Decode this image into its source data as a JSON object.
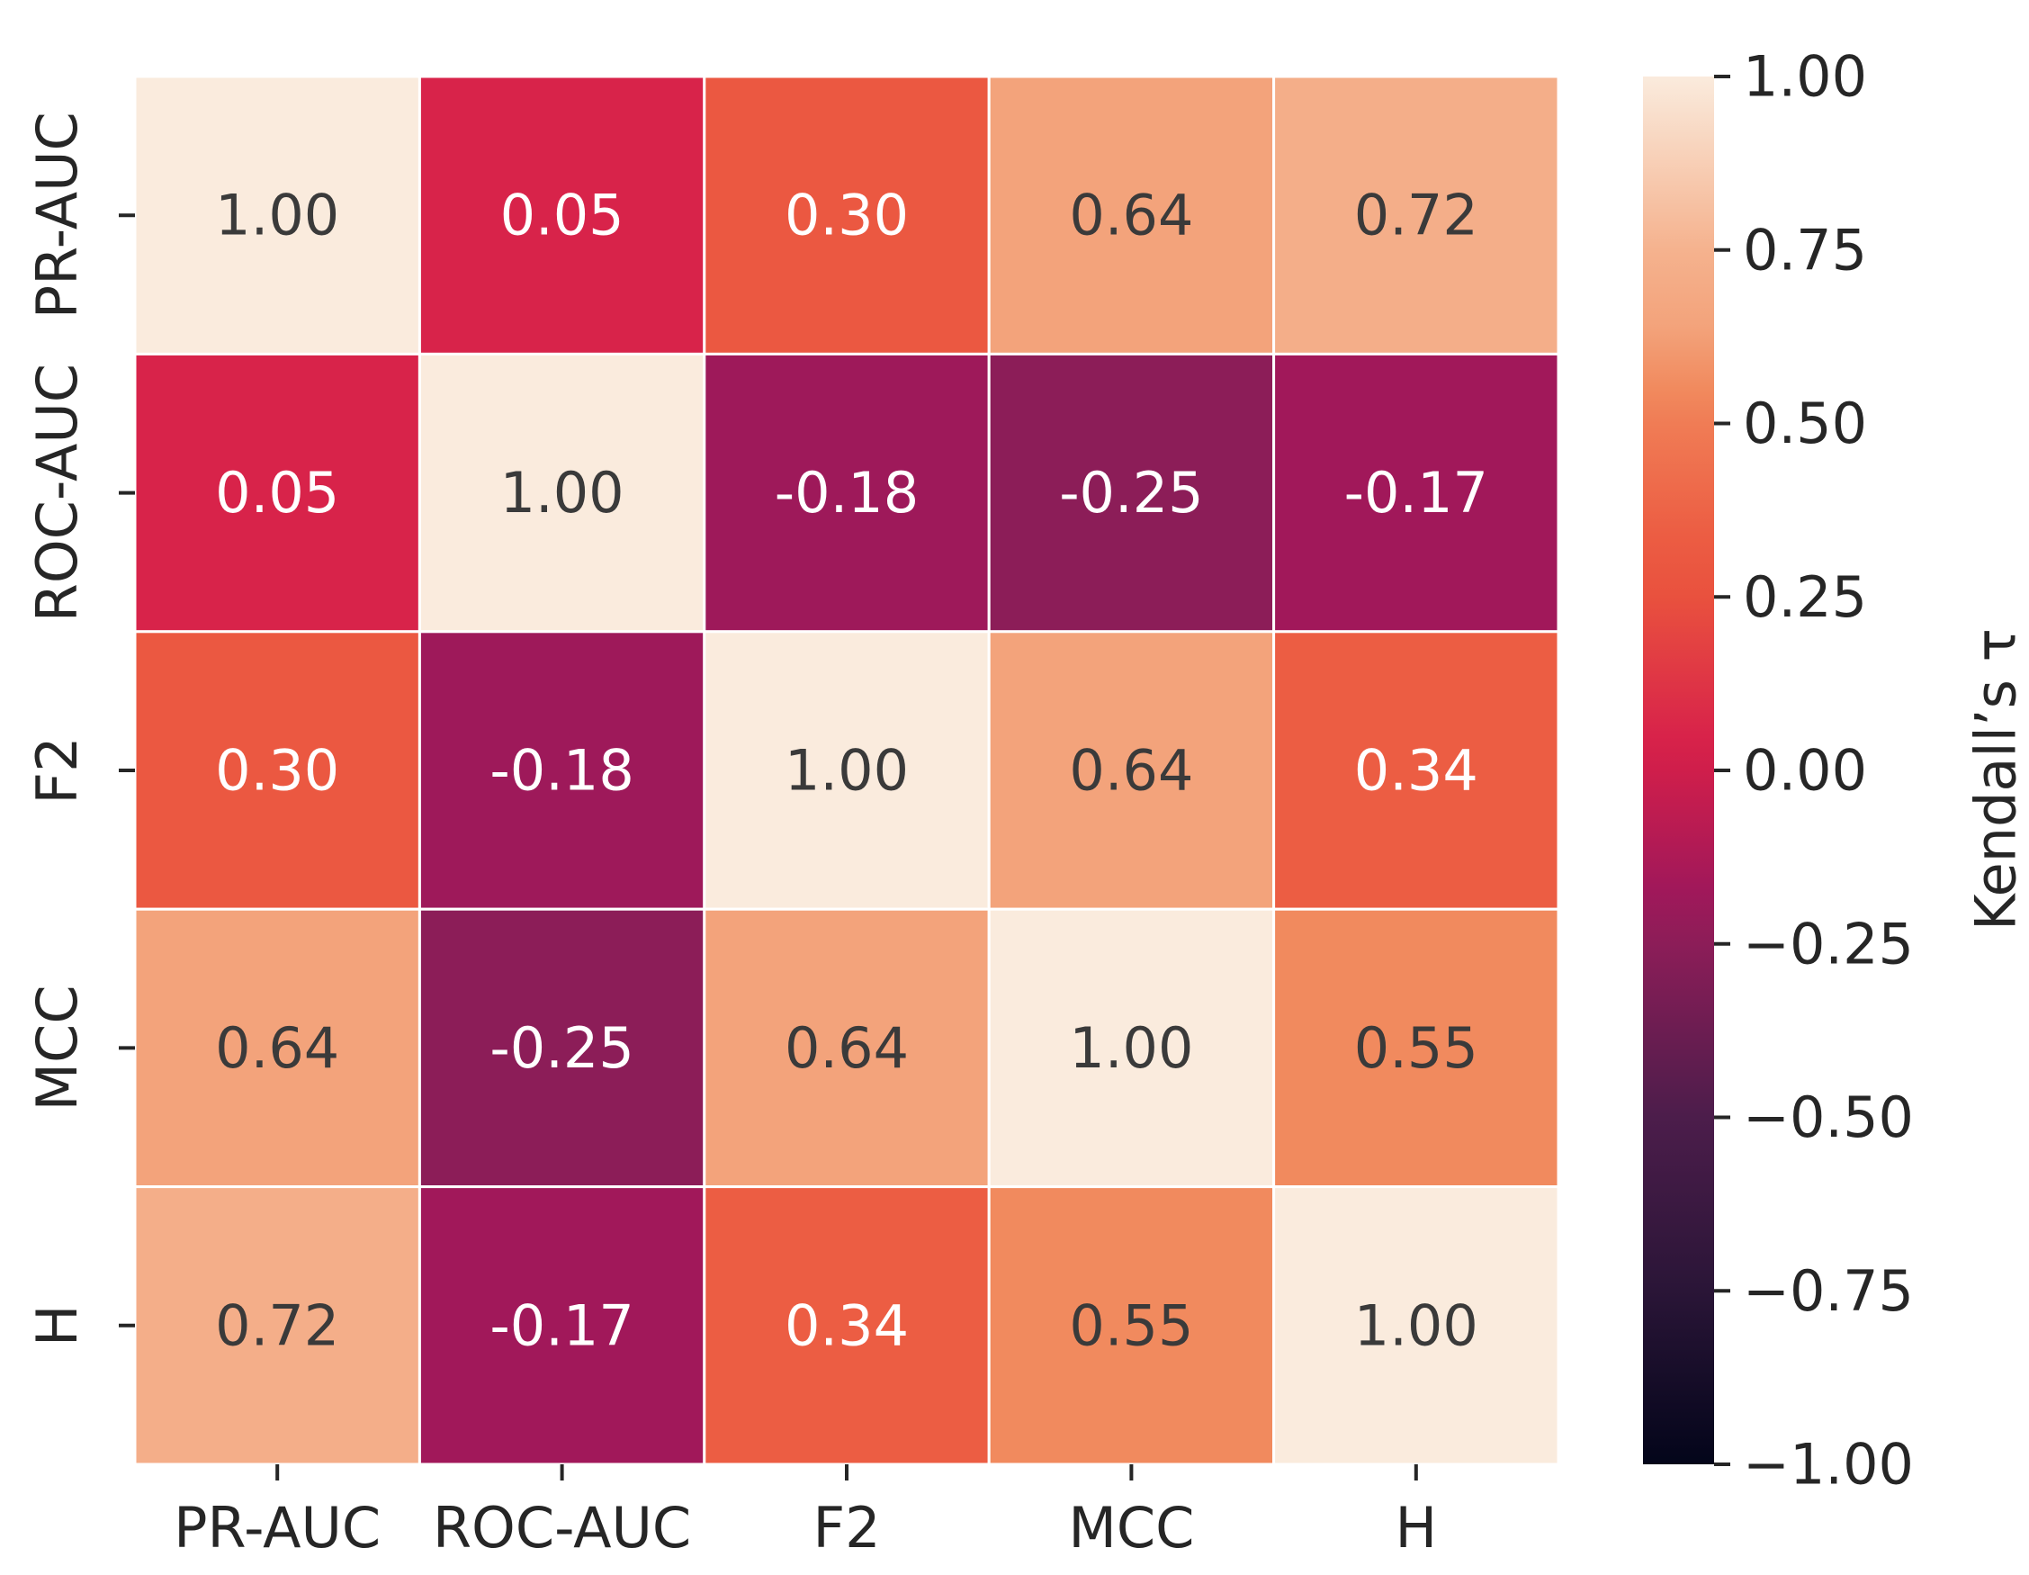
{
  "chart_data": {
    "type": "heatmap",
    "title": "",
    "xlabel": "",
    "ylabel": "",
    "x_categories": [
      "PR-AUC",
      "ROC-AUC",
      "F2",
      "MCC",
      "H"
    ],
    "y_categories": [
      "PR-AUC",
      "ROC-AUC",
      "F2",
      "MCC",
      "H"
    ],
    "matrix": [
      [
        1.0,
        0.05,
        0.3,
        0.64,
        0.72
      ],
      [
        0.05,
        1.0,
        -0.18,
        -0.25,
        -0.17
      ],
      [
        0.3,
        -0.18,
        1.0,
        0.64,
        0.34
      ],
      [
        0.64,
        -0.25,
        0.64,
        1.0,
        0.55
      ],
      [
        0.72,
        -0.17,
        0.34,
        0.55,
        1.0
      ]
    ],
    "value_labels": [
      [
        "1.00",
        "0.05",
        "0.30",
        "0.64",
        "0.72"
      ],
      [
        "0.05",
        "1.00",
        "-0.18",
        "-0.25",
        "-0.17"
      ],
      [
        "0.30",
        "-0.18",
        "1.00",
        "0.64",
        "0.34"
      ],
      [
        "0.64",
        "-0.25",
        "0.64",
        "1.00",
        "0.55"
      ],
      [
        "0.72",
        "-0.17",
        "0.34",
        "0.55",
        "1.00"
      ]
    ],
    "colorbar": {
      "label": "Kendall’s τ",
      "range": [
        -1.0,
        1.0
      ],
      "ticks": [
        1.0,
        0.75,
        0.5,
        0.25,
        0.0,
        -0.25,
        -0.5,
        -0.75,
        -1.0
      ],
      "tick_labels": [
        "1.00",
        "0.75",
        "0.50",
        "0.25",
        "0.00",
        "−0.25",
        "−0.50",
        "−0.75",
        "−1.00"
      ],
      "colormap": "rocket",
      "colormap_stops": [
        {
          "v": -1.0,
          "color": "#03051a"
        },
        {
          "v": -0.75,
          "color": "#2a1537"
        },
        {
          "v": -0.5,
          "color": "#4c1d4b"
        },
        {
          "v": -0.25,
          "color": "#8c1d58"
        },
        {
          "v": -0.17,
          "color": "#a1185a"
        },
        {
          "v": 0.0,
          "color": "#cf1e4b"
        },
        {
          "v": 0.05,
          "color": "#d8234a"
        },
        {
          "v": 0.25,
          "color": "#e9513e"
        },
        {
          "v": 0.34,
          "color": "#ec5d43"
        },
        {
          "v": 0.5,
          "color": "#f07c55"
        },
        {
          "v": 0.55,
          "color": "#f18a5e"
        },
        {
          "v": 0.64,
          "color": "#f3a37b"
        },
        {
          "v": 0.75,
          "color": "#f5b28e"
        },
        {
          "v": 1.0,
          "color": "#faebdd"
        }
      ]
    },
    "text_colors": {
      "dark": "#3a3a3a",
      "light": "#ffffff"
    }
  }
}
